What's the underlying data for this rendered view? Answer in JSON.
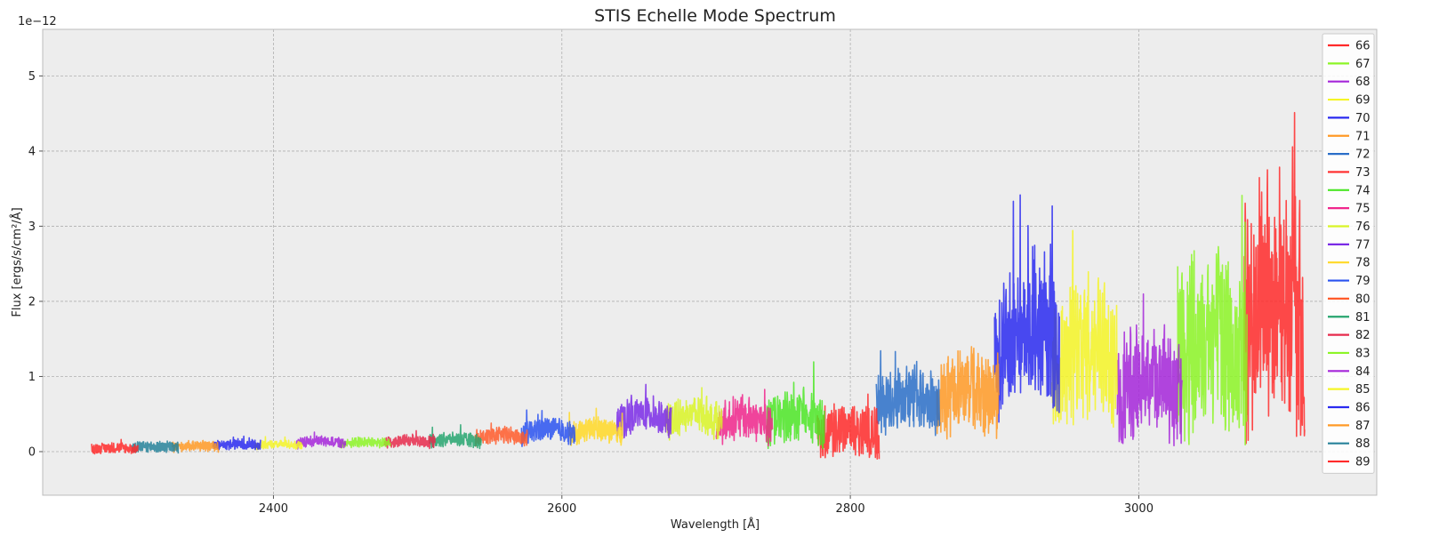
{
  "chart_data": {
    "type": "line",
    "title": "STIS Echelle Mode Spectrum",
    "xlabel": "Wavelength [Å]",
    "ylabel": "Flux [ergs/s/cm²/Å]",
    "y_offset_label": "1e−12",
    "xlim": [
      2240,
      3165
    ],
    "ylim": [
      -0.58,
      5.62
    ],
    "xticks": [
      2400,
      2600,
      2800,
      3000
    ],
    "yticks": [
      0,
      1,
      2,
      3,
      4,
      5
    ],
    "grid": true,
    "legend_position": "right",
    "series": [
      {
        "name": "66",
        "color": "#ff2a2a",
        "x_range": [
          3073,
          3115
        ],
        "level": 2.1,
        "amp": 1.4
      },
      {
        "name": "67",
        "color": "#8cf526",
        "x_range": [
          3027,
          3075
        ],
        "level": 1.6,
        "amp": 1.1
      },
      {
        "name": "68",
        "color": "#a526d9",
        "x_range": [
          2985,
          3030
        ],
        "level": 0.95,
        "amp": 0.65
      },
      {
        "name": "69",
        "color": "#f5f526",
        "x_range": [
          2940,
          2985
        ],
        "level": 1.4,
        "amp": 0.8
      },
      {
        "name": "70",
        "color": "#2a2af0",
        "x_range": [
          2900,
          2945
        ],
        "level": 1.65,
        "amp": 0.8
      },
      {
        "name": "71",
        "color": "#ff9a26",
        "x_range": [
          2860,
          2903
        ],
        "level": 0.85,
        "amp": 0.5
      },
      {
        "name": "72",
        "color": "#2a6ec8",
        "x_range": [
          2818,
          2862
        ],
        "level": 0.75,
        "amp": 0.35
      },
      {
        "name": "73",
        "color": "#ff2a2a",
        "x_range": [
          2777,
          2820
        ],
        "level": 0.3,
        "amp": 0.3
      },
      {
        "name": "74",
        "color": "#4ce626",
        "x_range": [
          2742,
          2782
        ],
        "level": 0.5,
        "amp": 0.3
      },
      {
        "name": "75",
        "color": "#f0268c",
        "x_range": [
          2707,
          2746
        ],
        "level": 0.45,
        "amp": 0.25
      },
      {
        "name": "76",
        "color": "#d9f526",
        "x_range": [
          2672,
          2711
        ],
        "level": 0.5,
        "amp": 0.22
      },
      {
        "name": "77",
        "color": "#7a2ae6",
        "x_range": [
          2638,
          2676
        ],
        "level": 0.5,
        "amp": 0.2
      },
      {
        "name": "78",
        "color": "#ffd826",
        "x_range": [
          2605,
          2642
        ],
        "level": 0.3,
        "amp": 0.14
      },
      {
        "name": "79",
        "color": "#2a52f0",
        "x_range": [
          2572,
          2609
        ],
        "level": 0.3,
        "amp": 0.13
      },
      {
        "name": "80",
        "color": "#ff5a2a",
        "x_range": [
          2540,
          2576
        ],
        "level": 0.22,
        "amp": 0.1
      },
      {
        "name": "81",
        "color": "#26a56e",
        "x_range": [
          2508,
          2544
        ],
        "level": 0.17,
        "amp": 0.08
      },
      {
        "name": "82",
        "color": "#e62a4c",
        "x_range": [
          2477,
          2512
        ],
        "level": 0.15,
        "amp": 0.07
      },
      {
        "name": "83",
        "color": "#8cf526",
        "x_range": [
          2446,
          2481
        ],
        "level": 0.13,
        "amp": 0.06
      },
      {
        "name": "84",
        "color": "#a526d9",
        "x_range": [
          2416,
          2450
        ],
        "level": 0.14,
        "amp": 0.06
      },
      {
        "name": "85",
        "color": "#f5f526",
        "x_range": [
          2387,
          2420
        ],
        "level": 0.1,
        "amp": 0.05
      },
      {
        "name": "86",
        "color": "#2a2af0",
        "x_range": [
          2358,
          2391
        ],
        "level": 0.1,
        "amp": 0.06
      },
      {
        "name": "87",
        "color": "#ff9a26",
        "x_range": [
          2330,
          2362
        ],
        "level": 0.08,
        "amp": 0.06
      },
      {
        "name": "88",
        "color": "#26829a",
        "x_range": [
          2302,
          2334
        ],
        "level": 0.07,
        "amp": 0.07
      },
      {
        "name": "89",
        "color": "#ff2a2a",
        "x_range": [
          2274,
          2306
        ],
        "level": 0.05,
        "amp": 0.06
      }
    ]
  }
}
